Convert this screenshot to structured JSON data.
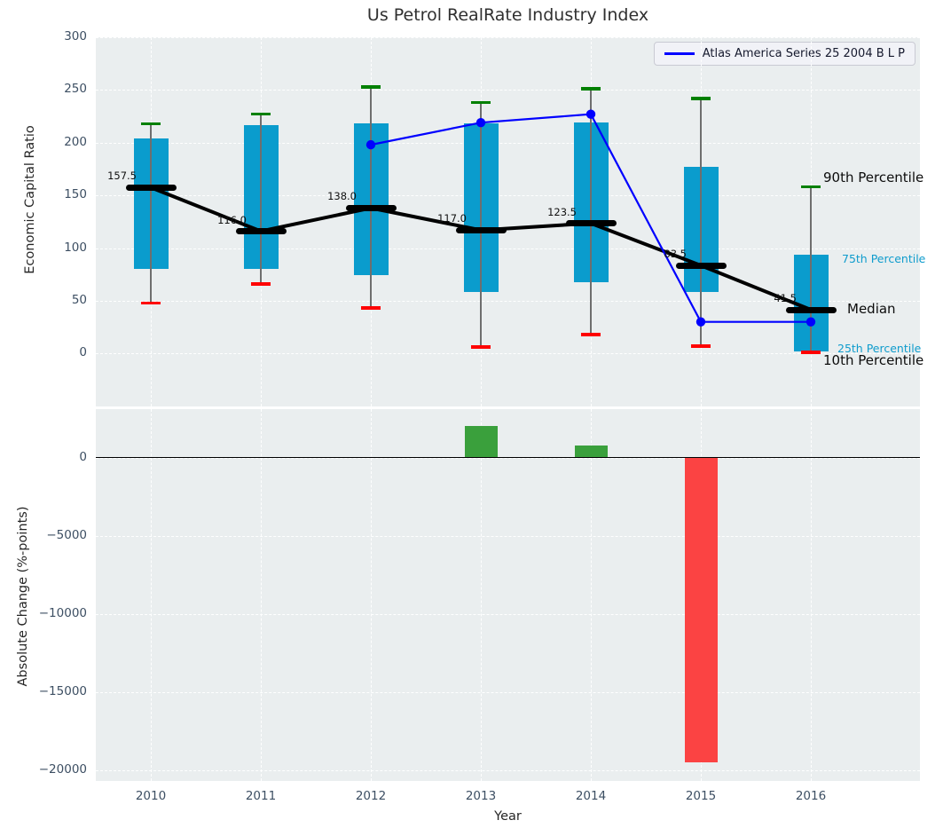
{
  "chart_data": [
    {
      "type": "boxplot",
      "title": "Us Petrol RealRate Industry Index",
      "ylabel": "Economic Capital Ratio",
      "ylim": [
        -50,
        300
      ],
      "yticks": [
        300,
        250,
        200,
        150,
        100,
        50,
        0
      ],
      "grid": true,
      "categories": [
        "2010",
        "2011",
        "2012",
        "2013",
        "2014",
        "2015",
        "2016"
      ],
      "boxes": [
        {
          "year": "2010",
          "p10": 48,
          "p25": 80,
          "median": 157.5,
          "p75": 204,
          "p90": 218,
          "label": "157.5"
        },
        {
          "year": "2011",
          "p10": 66,
          "p25": 80,
          "median": 116.0,
          "p75": 217,
          "p90": 227,
          "label": "116.0"
        },
        {
          "year": "2012",
          "p10": 43,
          "p25": 74,
          "median": 138.0,
          "p75": 218,
          "p90": 253,
          "label": "138.0"
        },
        {
          "year": "2013",
          "p10": 6,
          "p25": 58,
          "median": 117.0,
          "p75": 218,
          "p90": 238,
          "label": "117.0"
        },
        {
          "year": "2014",
          "p10": 18,
          "p25": 68,
          "median": 123.5,
          "p75": 219,
          "p90": 251,
          "label": "123.5"
        },
        {
          "year": "2015",
          "p10": 7,
          "p25": 58,
          "median": 83.5,
          "p75": 177,
          "p90": 242,
          "label": "83.5"
        },
        {
          "year": "2016",
          "p10": 1,
          "p25": 2,
          "median": 41.5,
          "p75": 94,
          "p90": 158,
          "label": "41.5"
        }
      ],
      "line_series": {
        "name": "Atlas America Series 25 2004 B L P",
        "x": [
          "2012",
          "2013",
          "2014",
          "2015",
          "2016"
        ],
        "values": [
          198,
          219,
          227,
          30,
          30
        ]
      },
      "legend_position": "upper right",
      "percentile_labels": {
        "p90": "90th Percentile",
        "p75": "75th Percentile",
        "median": "Median",
        "p25": "25th Percentile",
        "p10": "10th Percentile"
      }
    },
    {
      "type": "bar",
      "ylabel": "Absolute Change (%-points)",
      "xlabel": "Year",
      "ylim": [
        -20700,
        3100
      ],
      "yticks": [
        0,
        -5000,
        -10000,
        -15000,
        -20000
      ],
      "grid": true,
      "categories": [
        "2010",
        "2011",
        "2012",
        "2013",
        "2014",
        "2015",
        "2016"
      ],
      "values": [
        0,
        0,
        0,
        2000,
        750,
        -19500,
        0
      ]
    }
  ],
  "colors": {
    "box": "#0a9ccd",
    "cap_high": "#008000",
    "cap_low": "#ff0000",
    "median": "#000000",
    "median_line": "#000000",
    "series_line": "#0000ff",
    "bar_positive": "#3aa03c",
    "bar_negative": "#fb4343",
    "percentile_small_text": "#0f9ccd",
    "panel_bg": "#eaeeef"
  }
}
